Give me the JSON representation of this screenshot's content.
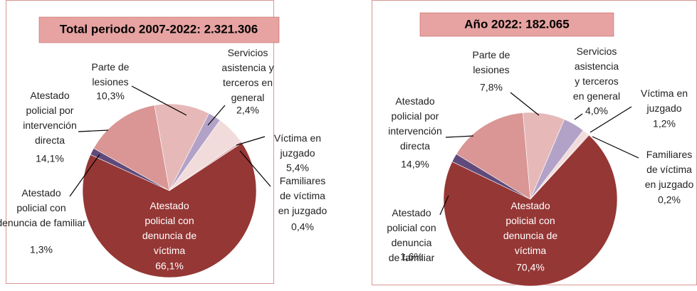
{
  "chart_data": [
    {
      "type": "pie",
      "title": "Total periodo 2007-2022: 2.321.306",
      "categories": [
        "Parte de\nlesiones",
        "Servicios\nasistencia y\nterceros en\ngeneral",
        "Víctima en\njuzgado",
        "Familiares\nde víctima\nen juzgado",
        "Atestado\npolicial con\ndenuncia de\nvíctima",
        "Atestado\npolicial con\ndenuncia de familiar",
        "Atestado\npolicial por\nintervención\ndirecta"
      ],
      "values": [
        10.3,
        2.4,
        5.4,
        0.4,
        66.1,
        1.3,
        14.1
      ],
      "value_labels": [
        "10,3%",
        "2,4%",
        "5,4%",
        "0,4%",
        "66,1%",
        "1,3%",
        "14,1%"
      ],
      "colors": [
        "#e6b9b8",
        "#b3a2c7",
        "#f2dcdb",
        "#dcb4b3",
        "#953735",
        "#604a7b",
        "#d99694"
      ]
    },
    {
      "type": "pie",
      "title": "Año 2022: 182.065",
      "categories": [
        "Parte de\nlesiones",
        "Servicios\nasistencia\ny terceros\nen general",
        "Víctima en\njuzgado",
        "Familiares\nde víctima\nen juzgado",
        "Atestado\npolicial con\ndenuncia de\nvíctima",
        "Atestado\npolicial con\ndenuncia\nde familiar",
        "Atestado\npolicial por\nintervención\ndirecta"
      ],
      "values": [
        7.8,
        4.0,
        1.2,
        0.2,
        70.4,
        1.6,
        14.9
      ],
      "value_labels": [
        "7,8%",
        "4,0%",
        "1,2%",
        "0,2%",
        "70,4%",
        "1,6%",
        "14,9%"
      ],
      "colors": [
        "#e6b9b8",
        "#b3a2c7",
        "#f2dcdb",
        "#dcb4b3",
        "#953735",
        "#604a7b",
        "#d99694"
      ]
    }
  ]
}
